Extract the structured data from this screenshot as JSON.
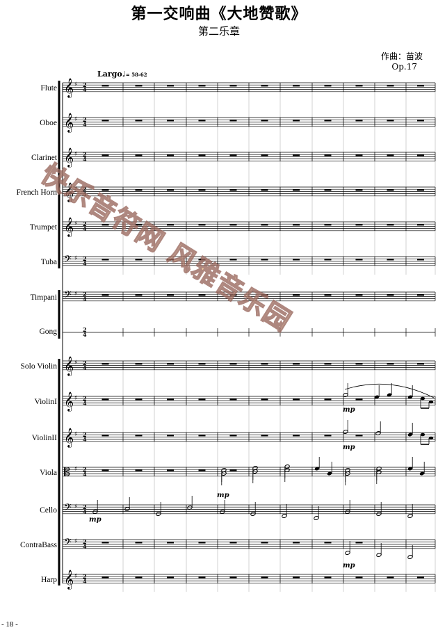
{
  "header": {
    "title": "第一交响曲《大地赞歌》",
    "movement": "第二乐章",
    "composer": "作曲：苗波",
    "opus": "Op.17"
  },
  "tempo": {
    "marking": "Largo",
    "metronome": "= 58-62"
  },
  "time_signature": "2/4",
  "key_signature": "G major (one sharp)",
  "instruments": [
    "Flute",
    "Oboe",
    "Clarinet",
    "French Horn",
    "Trumpet",
    "Tuba",
    "Timpani",
    "Gong",
    "Solo Violin",
    "ViolinI",
    "ViolinII",
    "Viola",
    "Cello",
    "ContraBass",
    "Harp"
  ],
  "dynamics": {
    "violin1": "mp",
    "violin2": "mp",
    "viola": "mp",
    "cello": "mp",
    "contrabass": "mp"
  },
  "watermark": "快乐音符网 风雅音乐园",
  "page_number": "- 18 -"
}
